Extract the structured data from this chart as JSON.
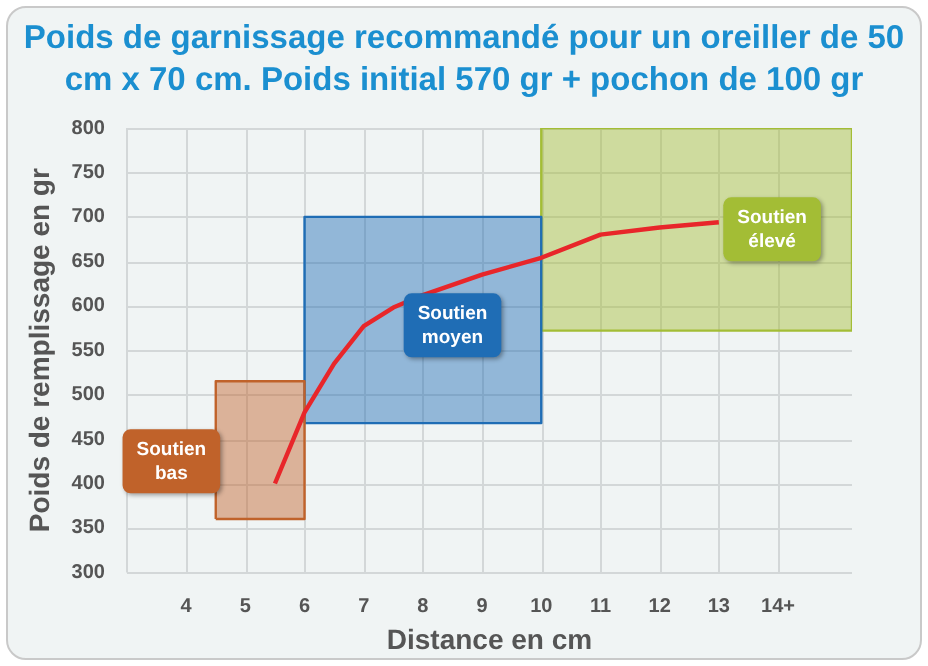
{
  "chart_data": {
    "type": "line",
    "title": "Poids de garnissage recommandé pour un oreiller de 50 cm x 70 cm. Poids initial 570 gr + pochon de 100 gr",
    "xlabel": "Distance en cm",
    "ylabel": "Poids de remplissage en gr",
    "x": [
      5.5,
      6,
      6.5,
      7,
      7.5,
      8,
      9,
      10,
      11,
      12,
      13
    ],
    "series": [
      {
        "type": "area",
        "name": "Soutien bas",
        "color": "#c0622a",
        "x": [
          4.5,
          4.5,
          6,
          6,
          4.5
        ],
        "values": [
          360,
          515,
          515,
          360,
          360
        ]
      },
      {
        "type": "area",
        "name": "Soutien moyen",
        "color": "#1f6db5",
        "x": [
          6,
          6,
          10,
          10,
          6
        ],
        "values": [
          468,
          700,
          700,
          468,
          468
        ]
      },
      {
        "type": "area",
        "name": "Soutien élevé",
        "color": "#a3bd35",
        "x": [
          10,
          10,
          15.25,
          15.25,
          10
        ],
        "values": [
          572,
          800,
          800,
          572,
          572
        ]
      },
      {
        "color": "#e8262a",
        "values": [
          400,
          480,
          535,
          577,
          598,
          612,
          635,
          654,
          680,
          688,
          694
        ]
      }
    ],
    "xlim": [
      3,
      15.25
    ],
    "xticks": [
      4,
      5,
      6,
      7,
      8,
      9,
      10,
      11,
      12,
      13,
      {
        "value": 14,
        "label": "14+"
      }
    ],
    "ylim": [
      300,
      800
    ],
    "yticks": [
      300,
      350,
      400,
      450,
      500,
      550,
      600,
      650,
      700,
      750,
      800
    ],
    "grid": true,
    "legend": false,
    "marker": "none",
    "line_style": "solid"
  }
}
